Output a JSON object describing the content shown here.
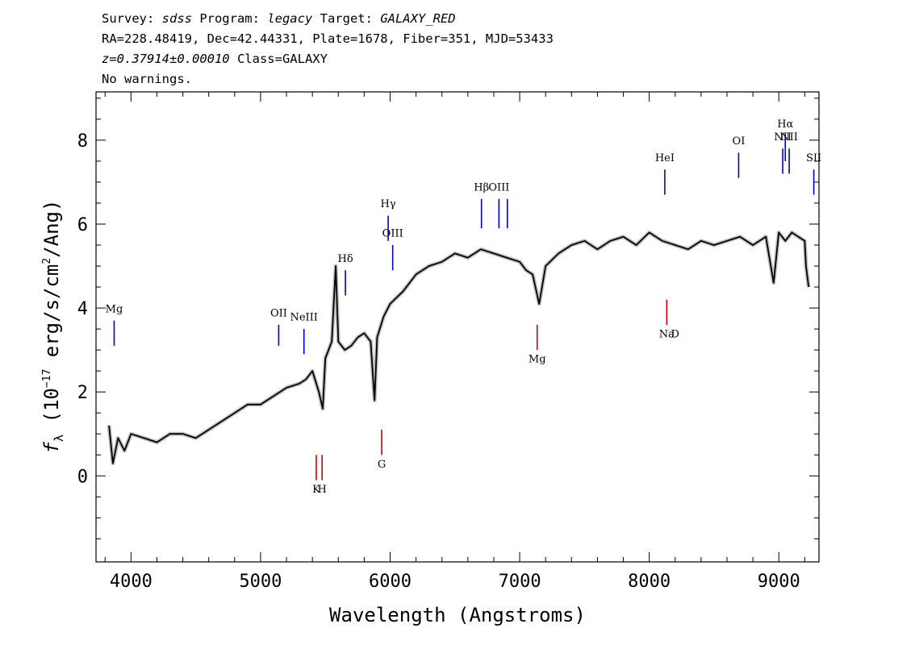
{
  "header": {
    "line1": {
      "survey_prefix": "Survey: ",
      "survey": "sdss",
      "program_prefix": " Program: ",
      "program": "legacy",
      "target_prefix": " Target: ",
      "target": "GALAXY_RED"
    },
    "line2": "RA=228.48419, Dec=42.44331, Plate=1678, Fiber=351, MJD=53433",
    "line3": {
      "redshift": "z=0.37914±0.00010",
      "class": " Class=GALAXY"
    },
    "line4": "No warnings."
  },
  "chart_data": {
    "type": "line",
    "xlabel": "Wavelength (Angstroms)",
    "ylabel": {
      "prefix": "f",
      "sub": "λ",
      "text1": " (10",
      "exp1": "−17",
      "text2": " erg/s/cm",
      "exp2": "2",
      "text3": "/Ang)"
    },
    "xlim": [
      3730,
      9310
    ],
    "ylim": [
      -2.05,
      9.15
    ],
    "x_ticks": [
      4000,
      5000,
      6000,
      7000,
      8000,
      9000
    ],
    "y_ticks": [
      0,
      2,
      4,
      6,
      8
    ],
    "grid": false,
    "series": [
      {
        "color": "#c0c0c0",
        "x": [
          3830,
          3860,
          3880,
          3900,
          3950,
          4000,
          4100,
          4200,
          4300,
          4400,
          4500,
          4600,
          4700,
          4800,
          4900,
          5000,
          5100,
          5200,
          5300,
          5350,
          5400,
          5450,
          5480,
          5500,
          5550,
          5580,
          5600,
          5650,
          5700,
          5750,
          5800,
          5850,
          5880,
          5900,
          5950,
          6000,
          6100,
          6200,
          6300,
          6400,
          6500,
          6600,
          6700,
          6800,
          6900,
          7000,
          7050,
          7100,
          7150,
          7200,
          7300,
          7400,
          7500,
          7600,
          7700,
          7800,
          7900,
          8000,
          8100,
          8200,
          8300,
          8400,
          8500,
          8600,
          8700,
          8800,
          8900,
          8960,
          9000,
          9050,
          9100,
          9150,
          9200,
          9210,
          9230
        ],
        "values": [
          1.2,
          0.3,
          0.6,
          0.9,
          0.6,
          1.0,
          0.9,
          0.8,
          1.0,
          1.0,
          0.9,
          1.1,
          1.3,
          1.5,
          1.7,
          1.7,
          1.9,
          2.1,
          2.2,
          2.3,
          2.5,
          2.0,
          1.6,
          2.8,
          3.2,
          5.0,
          3.2,
          3.0,
          3.1,
          3.3,
          3.4,
          3.2,
          1.8,
          3.3,
          3.8,
          4.1,
          4.4,
          4.8,
          5.0,
          5.1,
          5.3,
          5.2,
          5.4,
          5.3,
          5.2,
          5.1,
          4.9,
          4.8,
          4.1,
          5.0,
          5.3,
          5.5,
          5.6,
          5.4,
          5.6,
          5.7,
          5.5,
          5.8,
          5.6,
          5.5,
          5.4,
          5.6,
          5.5,
          5.6,
          5.7,
          5.5,
          5.7,
          4.6,
          5.8,
          5.6,
          5.8,
          5.7,
          5.6,
          5.0,
          4.5
        ]
      },
      {
        "color": "#000000",
        "x": [
          3830,
          3860,
          3880,
          3900,
          3950,
          4000,
          4100,
          4200,
          4300,
          4400,
          4500,
          4600,
          4700,
          4800,
          4900,
          5000,
          5100,
          5200,
          5300,
          5350,
          5400,
          5450,
          5480,
          5500,
          5550,
          5580,
          5600,
          5650,
          5700,
          5750,
          5800,
          5850,
          5880,
          5900,
          5950,
          6000,
          6100,
          6200,
          6300,
          6400,
          6500,
          6600,
          6700,
          6800,
          6900,
          7000,
          7050,
          7100,
          7150,
          7200,
          7300,
          7400,
          7500,
          7600,
          7700,
          7800,
          7900,
          8000,
          8100,
          8200,
          8300,
          8400,
          8500,
          8600,
          8700,
          8800,
          8900,
          8960,
          9000,
          9050,
          9100,
          9150,
          9200,
          9210,
          9230
        ],
        "values": [
          1.2,
          0.3,
          0.6,
          0.9,
          0.6,
          1.0,
          0.9,
          0.8,
          1.0,
          1.0,
          0.9,
          1.1,
          1.3,
          1.5,
          1.7,
          1.7,
          1.9,
          2.1,
          2.2,
          2.3,
          2.5,
          2.0,
          1.6,
          2.8,
          3.2,
          5.0,
          3.2,
          3.0,
          3.1,
          3.3,
          3.4,
          3.2,
          1.8,
          3.3,
          3.8,
          4.1,
          4.4,
          4.8,
          5.0,
          5.1,
          5.3,
          5.2,
          5.4,
          5.3,
          5.2,
          5.1,
          4.9,
          4.8,
          4.1,
          5.0,
          5.3,
          5.5,
          5.6,
          5.4,
          5.6,
          5.7,
          5.5,
          5.8,
          5.6,
          5.5,
          5.4,
          5.6,
          5.5,
          5.6,
          5.7,
          5.5,
          5.7,
          4.6,
          5.8,
          5.6,
          5.8,
          5.7,
          5.6,
          5.0,
          4.5
        ]
      }
    ],
    "emission_lines": [
      {
        "name": "Mg",
        "x": 3870,
        "y_top": 3.7,
        "y_bottom": 3.1,
        "label_y": 3.9,
        "color": "#0000cc"
      },
      {
        "name": "OII",
        "x": 5140,
        "y_top": 3.6,
        "y_bottom": 3.1,
        "label_y": 3.8,
        "color": "#0000cc"
      },
      {
        "name": "NeIII",
        "x": 5335,
        "y_top": 3.5,
        "y_bottom": 2.9,
        "label_y": 3.7,
        "color": "#0000cc"
      },
      {
        "name": "Hδ",
        "x": 5655,
        "y_top": 4.9,
        "y_bottom": 4.3,
        "label_y": 5.1,
        "color": "#0000cc"
      },
      {
        "name": "Hγ",
        "x": 5985,
        "y_top": 6.2,
        "y_bottom": 5.6,
        "label_y": 6.4,
        "color": "#0000cc"
      },
      {
        "name": "OIII",
        "x": 6020,
        "y_top": 5.5,
        "y_bottom": 4.9,
        "label_y": 5.7,
        "color": "#0000cc"
      },
      {
        "name": "Hβ",
        "x": 6705,
        "y_top": 6.6,
        "y_bottom": 5.9,
        "label_y": 6.8,
        "color": "#0000cc"
      },
      {
        "name": "OIII",
        "x": 6840,
        "y_top": 6.6,
        "y_bottom": 5.9,
        "label_y": 6.8,
        "color": "#0000cc"
      },
      {
        "name": "",
        "x": 6905,
        "y_top": 6.6,
        "y_bottom": 5.9,
        "label_y": 6.8,
        "color": "#0000cc"
      },
      {
        "name": "HeI",
        "x": 8120,
        "y_top": 7.3,
        "y_bottom": 6.7,
        "label_y": 7.5,
        "color": "#0000cc"
      },
      {
        "name": "OI",
        "x": 8690,
        "y_top": 7.7,
        "y_bottom": 7.1,
        "label_y": 7.9,
        "color": "#0000cc"
      },
      {
        "name": "NII",
        "x": 9030,
        "y_top": 7.8,
        "y_bottom": 7.2,
        "label_y": 8.0,
        "color": "#0000cc"
      },
      {
        "name": "Hα",
        "x": 9050,
        "y_top": 8.1,
        "y_bottom": 7.5,
        "label_y": 8.3,
        "color": "#0000cc"
      },
      {
        "name": "NII",
        "x": 9080,
        "y_top": 7.8,
        "y_bottom": 7.2,
        "label_y": 8.0,
        "color": "#0000cc"
      },
      {
        "name": "SII",
        "x": 9270,
        "y_top": 7.3,
        "y_bottom": 6.7,
        "label_y": 7.5,
        "color": "#0000cc"
      }
    ],
    "absorption_lines": [
      {
        "name": "K",
        "x": 5430,
        "y_top": 0.5,
        "y_bottom": -0.1,
        "label_y": -0.4,
        "color": "#cc0000"
      },
      {
        "name": "H",
        "x": 5475,
        "y_top": 0.5,
        "y_bottom": -0.1,
        "label_y": -0.4,
        "color": "#cc0000"
      },
      {
        "name": "G",
        "x": 5935,
        "y_top": 1.1,
        "y_bottom": 0.5,
        "label_y": 0.2,
        "color": "#cc0000"
      },
      {
        "name": "Mg",
        "x": 7135,
        "y_top": 3.6,
        "y_bottom": 3.0,
        "label_y": 2.7,
        "color": "#cc0000"
      },
      {
        "name": "Na",
        "x": 8135,
        "y_top": 4.2,
        "y_bottom": 3.6,
        "label_y": 3.3,
        "color": "#cc0000"
      },
      {
        "name": "D",
        "x": 8200,
        "y_top": null,
        "y_bottom": null,
        "label_y": 3.3,
        "color": "#cc0000"
      }
    ]
  }
}
